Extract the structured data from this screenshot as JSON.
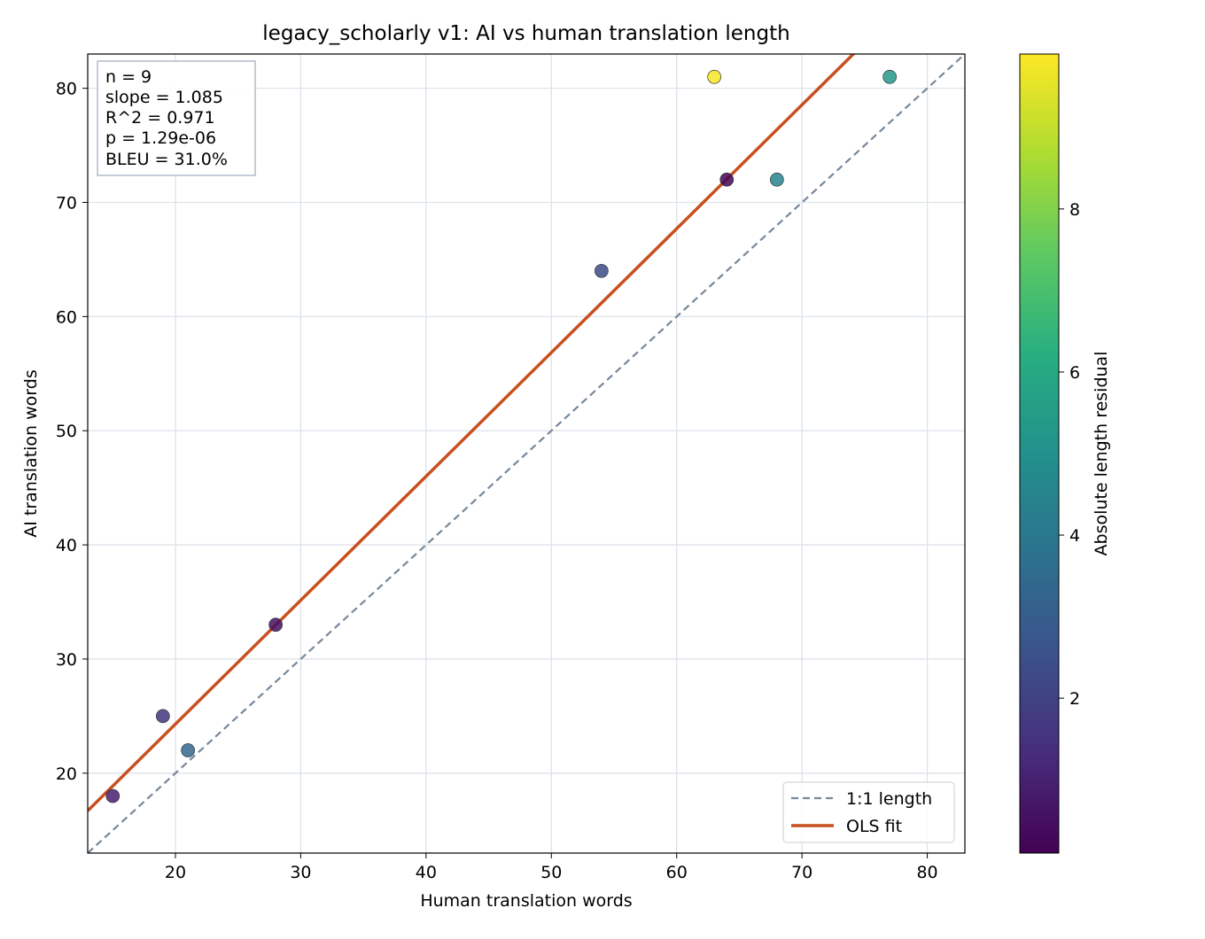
{
  "chart_data": {
    "type": "scatter",
    "title": "legacy_scholarly v1: AI vs human translation length",
    "xlabel": "Human translation words",
    "ylabel": "AI translation words",
    "xlim": [
      13,
      83
    ],
    "ylim": [
      13,
      83
    ],
    "xticks": [
      20,
      30,
      40,
      50,
      60,
      70,
      80
    ],
    "yticks": [
      20,
      30,
      40,
      50,
      60,
      70,
      80
    ],
    "grid": true,
    "points": [
      {
        "x": 15,
        "y": 18,
        "residual": 0.9
      },
      {
        "x": 19,
        "y": 25,
        "residual": 1.6
      },
      {
        "x": 21,
        "y": 22,
        "residual": 3.3
      },
      {
        "x": 28,
        "y": 33,
        "residual": 0.5
      },
      {
        "x": 54,
        "y": 64,
        "residual": 2.3
      },
      {
        "x": 63,
        "y": 81,
        "residual": 9.8
      },
      {
        "x": 64,
        "y": 72,
        "residual": 0.2
      },
      {
        "x": 68,
        "y": 72,
        "residual": 4.5
      },
      {
        "x": 77,
        "y": 81,
        "residual": 5.3
      }
    ],
    "lines": [
      {
        "name": "1:1 length",
        "slope": 1.0,
        "intercept": 0.0,
        "style": "dashed",
        "color": "#778899"
      },
      {
        "name": "OLS fit",
        "slope": 1.085,
        "intercept": 2.6,
        "style": "solid",
        "color": "#c8501e"
      }
    ],
    "stats_box": [
      "n = 9",
      "slope = 1.085",
      "R^2 = 0.971",
      "p = 1.29e-06",
      "BLEU = 31.0%"
    ],
    "legend_position": "lower-right",
    "colorbar": {
      "label": "Absolute length residual",
      "colormap": "viridis",
      "range": [
        0.1,
        9.9
      ],
      "ticks": [
        2,
        4,
        6,
        8
      ]
    }
  }
}
